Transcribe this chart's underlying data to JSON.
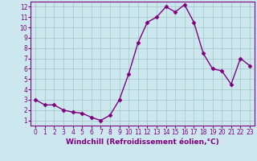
{
  "x": [
    0,
    1,
    2,
    3,
    4,
    5,
    6,
    7,
    8,
    9,
    10,
    11,
    12,
    13,
    14,
    15,
    16,
    17,
    18,
    19,
    20,
    21,
    22,
    23
  ],
  "y": [
    3.0,
    2.5,
    2.5,
    2.0,
    1.8,
    1.7,
    1.3,
    1.0,
    1.5,
    3.0,
    5.5,
    8.5,
    10.5,
    11.0,
    12.0,
    11.5,
    12.2,
    10.5,
    7.5,
    6.0,
    5.8,
    4.5,
    7.0,
    6.3
  ],
  "line_color": "#800080",
  "marker": "D",
  "markersize": 2.5,
  "linewidth": 1.0,
  "xlabel": "Windchill (Refroidissement éolien,°C)",
  "xlabel_fontsize": 6.5,
  "xlim": [
    -0.5,
    23.5
  ],
  "ylim": [
    0.5,
    12.5
  ],
  "yticks": [
    1,
    2,
    3,
    4,
    5,
    6,
    7,
    8,
    9,
    10,
    11,
    12
  ],
  "xticks": [
    0,
    1,
    2,
    3,
    4,
    5,
    6,
    7,
    8,
    9,
    10,
    11,
    12,
    13,
    14,
    15,
    16,
    17,
    18,
    19,
    20,
    21,
    22,
    23
  ],
  "background_color": "#cce8ee",
  "grid_color": "#aacccc",
  "tick_fontsize": 5.5,
  "tick_color": "#800080",
  "label_color": "#800080",
  "spine_color": "#800080"
}
